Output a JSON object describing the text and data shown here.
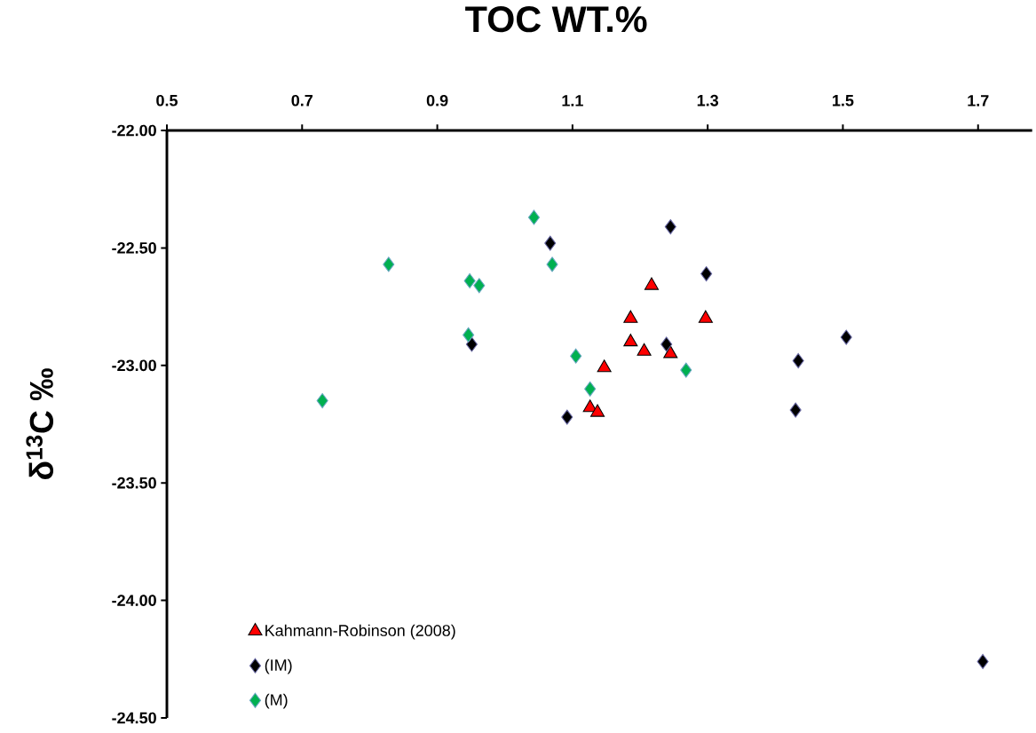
{
  "chart_data": {
    "type": "scatter",
    "title": "TOC WT.%",
    "ylabel": "δ$^{13}$C  ‰",
    "xlim": [
      0.5,
      1.78
    ],
    "xticks": [
      0.5,
      0.7,
      0.9,
      1.1,
      1.3,
      1.5,
      1.7
    ],
    "ylim": [
      -24.5,
      -22
    ],
    "yticks": [
      {
        "value": -22,
        "label": "-22.00"
      },
      {
        "value": -22.5,
        "label": "-22.50"
      },
      {
        "value": -23,
        "label": "-23.00"
      },
      {
        "value": -23.5,
        "label": "-23.50"
      },
      {
        "value": -24,
        "label": "-24.00"
      },
      {
        "value": -24.5,
        "label": "-24.50"
      }
    ],
    "legend": "bottom left",
    "grid": false,
    "series": [
      {
        "name": "Kahmann-Robinson (2008)",
        "color": "#ff0000",
        "marker": "triangle",
        "x": [
          1.217,
          1.186,
          1.297,
          1.186,
          1.206,
          1.245,
          1.147,
          1.126,
          1.137
        ],
        "values": [
          -22.66,
          -22.8,
          -22.8,
          -22.9,
          -22.94,
          -22.95,
          -23.01,
          -23.18,
          -23.2
        ]
      },
      {
        "name": "(IM)",
        "color": "#000000",
        "marker": "diamond",
        "x": [
          1.067,
          1.245,
          1.298,
          1.239,
          0.951,
          1.092,
          1.505,
          1.434,
          1.43,
          1.707
        ],
        "values": [
          -22.48,
          -22.41,
          -22.61,
          -22.91,
          -22.91,
          -23.22,
          -22.88,
          -22.98,
          -23.19,
          -24.26
        ]
      },
      {
        "name": "(M)",
        "color": "#00b050",
        "marker": "diamond",
        "x": [
          1.043,
          0.828,
          1.07,
          0.948,
          0.962,
          0.946,
          1.105,
          1.126,
          1.268,
          0.73
        ],
        "values": [
          -22.37,
          -22.57,
          -22.57,
          -22.64,
          -22.66,
          -22.87,
          -22.96,
          -23.1,
          -23.02,
          -23.15
        ]
      }
    ]
  }
}
